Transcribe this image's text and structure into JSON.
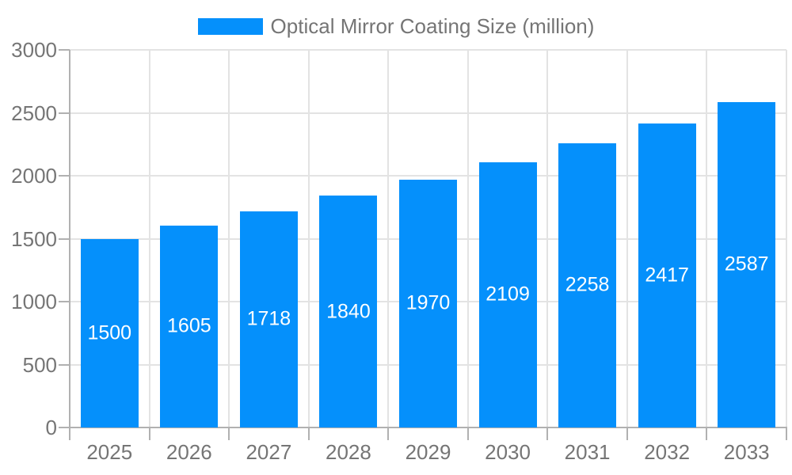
{
  "chart_data": {
    "type": "bar",
    "title": "Optical Mirror Coating Size (million)",
    "legend": {
      "label": "Optical Mirror Coating Size (million)",
      "position": "top"
    },
    "categories": [
      "2025",
      "2026",
      "2027",
      "2028",
      "2029",
      "2030",
      "2031",
      "2032",
      "2033"
    ],
    "values": [
      1500,
      1605,
      1718,
      1840,
      1970,
      2109,
      2258,
      2417,
      2587
    ],
    "xlabel": "",
    "ylabel": "",
    "ylim": [
      0,
      3000
    ],
    "y_ticks": [
      "0",
      "500",
      "1000",
      "1500",
      "2000",
      "2500",
      "3000"
    ],
    "grid": true,
    "legend_position": "top",
    "colors": {
      "bar": "#0590fb",
      "bar_label": "#ffffff",
      "axis_text": "#757575",
      "axis_line": "#b1b1b1",
      "gridline": "#e3e3e3",
      "background": "#ffffff"
    }
  }
}
